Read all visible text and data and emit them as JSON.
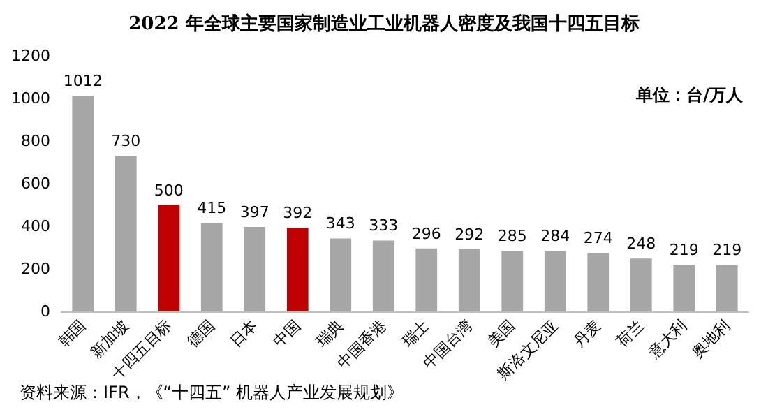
{
  "chart_data": {
    "type": "bar",
    "title": "2022 年全球主要国家制造业工业机器人密度及我国十四五目标",
    "categories": [
      "韩国",
      "新加坡",
      "十四五目标",
      "德国",
      "日本",
      "中国",
      "瑞典",
      "中国香港",
      "瑞士",
      "中国台湾",
      "美国",
      "斯洛文尼亚",
      "丹麦",
      "荷兰",
      "意大利",
      "奥地利"
    ],
    "values": [
      1012,
      730,
      500,
      415,
      397,
      392,
      343,
      333,
      296,
      292,
      285,
      284,
      274,
      248,
      219,
      219
    ],
    "colors": [
      "#a6a6a6",
      "#a6a6a6",
      "#c00000",
      "#a6a6a6",
      "#a6a6a6",
      "#c00000",
      "#a6a6a6",
      "#a6a6a6",
      "#a6a6a6",
      "#a6a6a6",
      "#a6a6a6",
      "#a6a6a6",
      "#a6a6a6",
      "#a6a6a6",
      "#a6a6a6",
      "#a6a6a6"
    ],
    "ylim": [
      0,
      1200
    ],
    "yticks": [
      0,
      200,
      400,
      600,
      800,
      1000,
      1200
    ],
    "grid": false,
    "data_labels": true,
    "annotations": [
      "单位：台/万人",
      "资料来源：IFR，《“十四五” 机器人产业发展规划》"
    ]
  }
}
